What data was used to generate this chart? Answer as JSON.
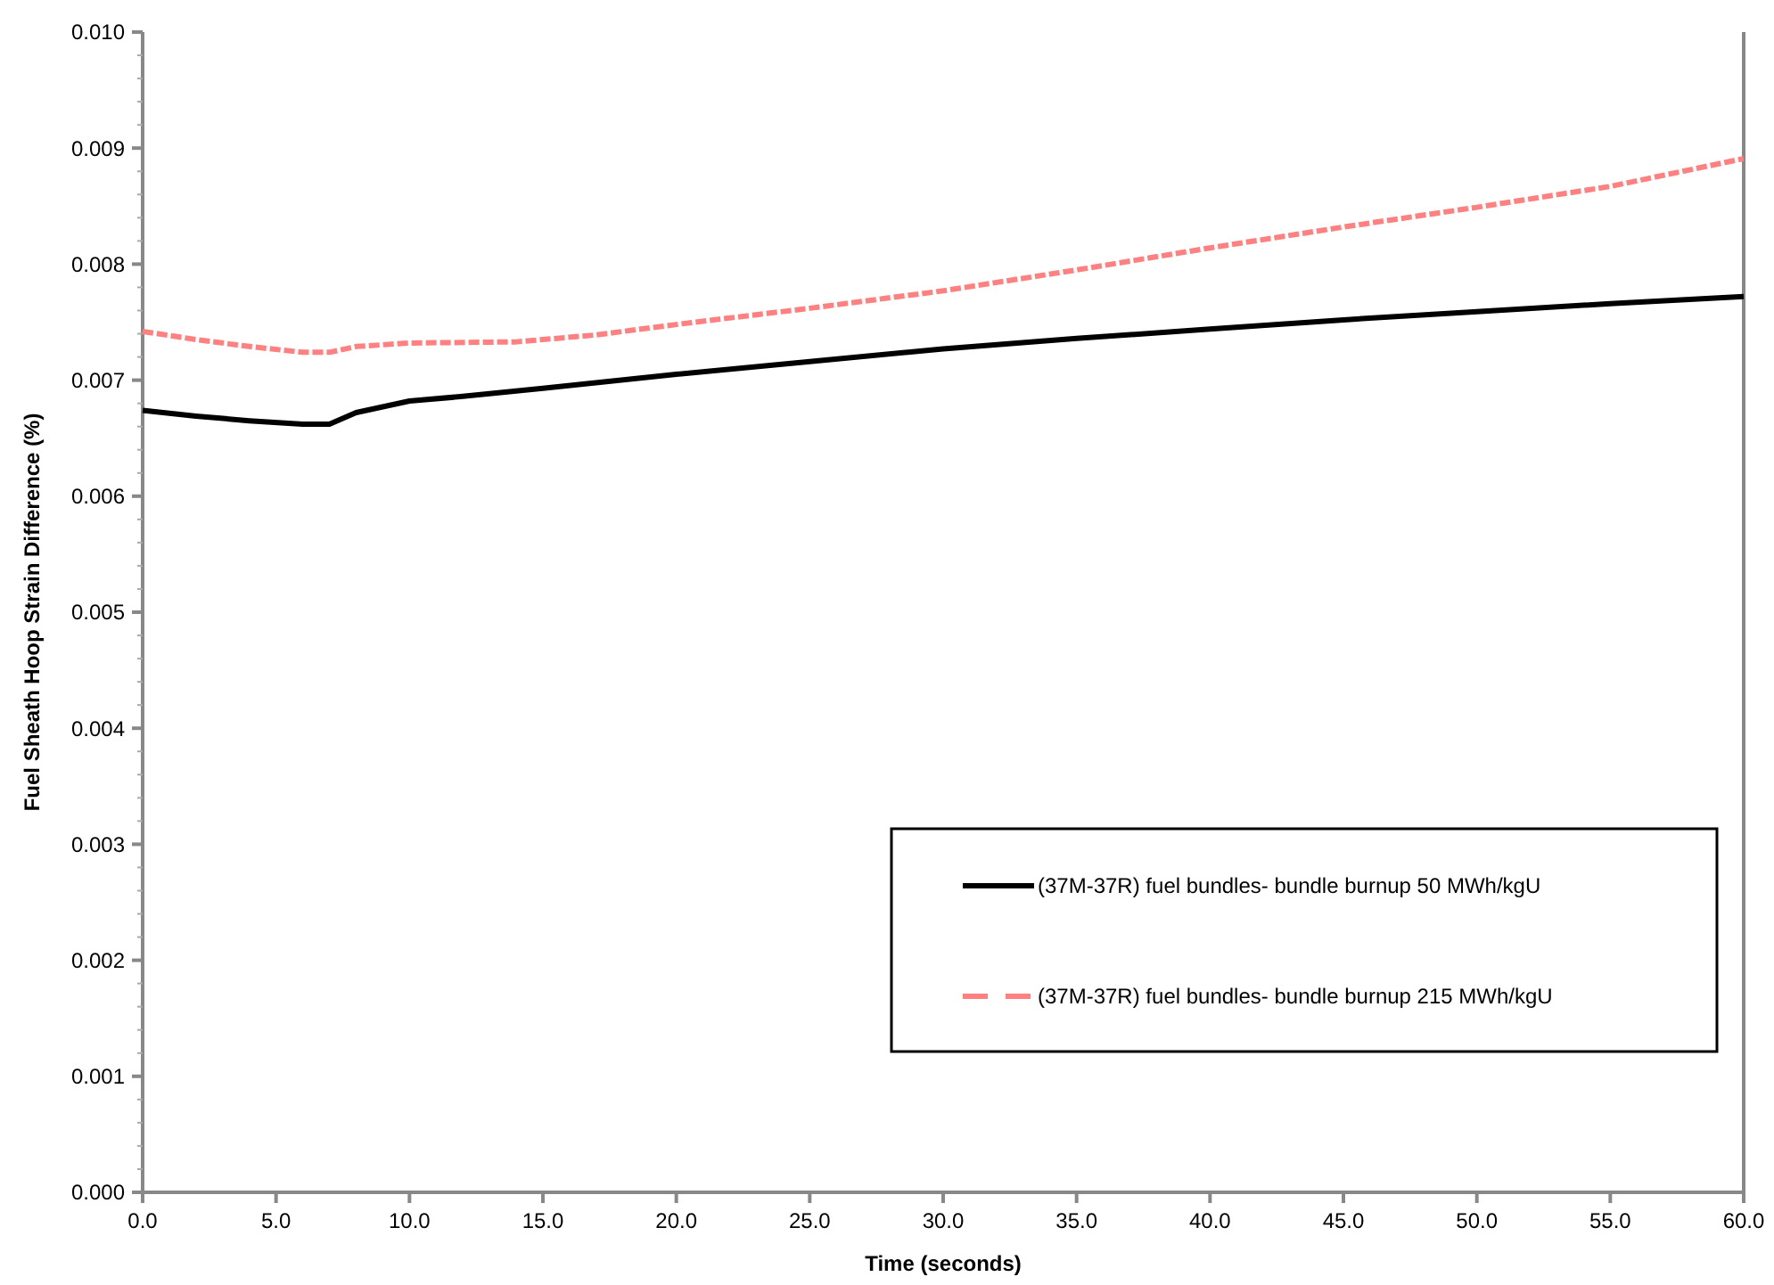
{
  "chart_data": {
    "type": "line",
    "xlabel": "Time (seconds)",
    "ylabel": "Fuel  Sheath Hoop Strain Difference (%)",
    "xlim": [
      0,
      60
    ],
    "xticks": [
      {
        "value": 0,
        "label": "0.0"
      },
      {
        "value": 5,
        "label": "5.0"
      },
      {
        "value": 10,
        "label": "10.0"
      },
      {
        "value": 15,
        "label": "15.0"
      },
      {
        "value": 20,
        "label": "20.0"
      },
      {
        "value": 25,
        "label": "25.0"
      },
      {
        "value": 30,
        "label": "30.0"
      },
      {
        "value": 35,
        "label": "35.0"
      },
      {
        "value": 40,
        "label": "40.0"
      },
      {
        "value": 45,
        "label": "45.0"
      },
      {
        "value": 50,
        "label": "50.0"
      },
      {
        "value": 55,
        "label": "55.0"
      },
      {
        "value": 60,
        "label": "60.0"
      }
    ],
    "ylim": [
      0,
      0.01
    ],
    "yticks": [
      {
        "value": 0,
        "label": "0.000"
      },
      {
        "value": 0.001,
        "label": "0.001"
      },
      {
        "value": 0.002,
        "label": "0.002"
      },
      {
        "value": 0.003,
        "label": "0.003"
      },
      {
        "value": 0.004,
        "label": "0.004"
      },
      {
        "value": 0.005,
        "label": "0.005"
      },
      {
        "value": 0.006,
        "label": "0.006"
      },
      {
        "value": 0.007,
        "label": "0.007"
      },
      {
        "value": 0.008,
        "label": "0.008"
      },
      {
        "value": 0.009,
        "label": "0.009"
      },
      {
        "value": 0.01,
        "label": "0.010"
      }
    ],
    "legend": "bottom right",
    "grid": false,
    "series": [
      {
        "name": "(37M-37R) fuel bundles- bundle burnup 50 MWh/kgU",
        "color": "#000000",
        "line_style": "solid",
        "x": [
          0,
          2,
          4,
          6,
          7,
          8,
          10,
          12,
          15,
          20,
          25,
          30,
          35,
          40,
          45,
          50,
          55,
          60
        ],
        "values": [
          0.00674,
          0.00669,
          0.00665,
          0.00662,
          0.00662,
          0.00672,
          0.00682,
          0.00686,
          0.00693,
          0.00705,
          0.00716,
          0.00727,
          0.00736,
          0.00744,
          0.00752,
          0.00759,
          0.00766,
          0.00772
        ]
      },
      {
        "name": "(37M-37R) fuel bundles- bundle burnup 215 MWh/kgU",
        "color": "#ff8080",
        "line_style": "dashed",
        "x": [
          0,
          2,
          4,
          6,
          7,
          8,
          10,
          14,
          17,
          20,
          25,
          30,
          35,
          40,
          45,
          50,
          55,
          60
        ],
        "values": [
          0.00742,
          0.00735,
          0.00729,
          0.00724,
          0.00724,
          0.00729,
          0.00732,
          0.00733,
          0.00739,
          0.00748,
          0.00762,
          0.00777,
          0.00795,
          0.00814,
          0.00832,
          0.00849,
          0.00867,
          0.00891
        ]
      }
    ]
  }
}
